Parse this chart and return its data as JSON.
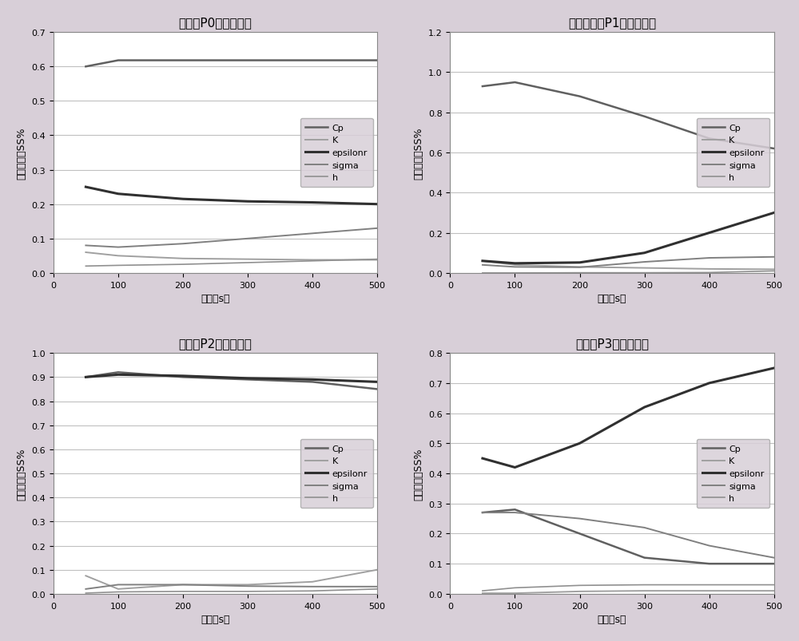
{
  "plots": [
    {
      "title": "中心点P0方差贡献率",
      "xlabel": "时间（s）",
      "ylabel": "方差贡献率SS%",
      "xlim": [
        0,
        500
      ],
      "ylim": [
        0,
        0.7
      ],
      "yticks": [
        0,
        0.1,
        0.2,
        0.3,
        0.4,
        0.5,
        0.6,
        0.7
      ],
      "series": {
        "Cp": {
          "x": [
            50,
            100,
            200,
            300,
            400,
            500
          ],
          "y": [
            0.6,
            0.618,
            0.618,
            0.618,
            0.618,
            0.618
          ],
          "color": "#606060",
          "lw": 1.8
        },
        "K": {
          "x": [
            50,
            100,
            200,
            300,
            400,
            500
          ],
          "y": [
            0.06,
            0.05,
            0.042,
            0.04,
            0.038,
            0.038
          ],
          "color": "#a0a0a0",
          "lw": 1.4
        },
        "epsilonr": {
          "x": [
            50,
            100,
            200,
            300,
            400,
            500
          ],
          "y": [
            0.25,
            0.23,
            0.215,
            0.208,
            0.205,
            0.2
          ],
          "color": "#303030",
          "lw": 2.2
        },
        "sigma": {
          "x": [
            50,
            100,
            200,
            300,
            400,
            500
          ],
          "y": [
            0.08,
            0.075,
            0.085,
            0.1,
            0.115,
            0.13
          ],
          "color": "#808080",
          "lw": 1.4
        },
        "h": {
          "x": [
            50,
            100,
            200,
            300,
            400,
            500
          ],
          "y": [
            0.02,
            0.022,
            0.025,
            0.03,
            0.035,
            0.04
          ],
          "color": "#909090",
          "lw": 1.2
        }
      }
    },
    {
      "title": "近场水冷点P1方差贡献率",
      "xlabel": "时间（s）",
      "ylabel": "方差贡献率SS%",
      "xlim": [
        0,
        500
      ],
      "ylim": [
        0,
        1.2
      ],
      "yticks": [
        0,
        0.2,
        0.4,
        0.6,
        0.8,
        1.0,
        1.2
      ],
      "series": {
        "Cp": {
          "x": [
            50,
            100,
            200,
            300,
            400,
            500
          ],
          "y": [
            0.93,
            0.95,
            0.88,
            0.78,
            0.67,
            0.62
          ],
          "color": "#606060",
          "lw": 1.8
        },
        "K": {
          "x": [
            50,
            100,
            200,
            300,
            400,
            500
          ],
          "y": [
            0.06,
            0.04,
            0.03,
            0.025,
            0.02,
            0.018
          ],
          "color": "#a0a0a0",
          "lw": 1.4
        },
        "epsilonr": {
          "x": [
            50,
            100,
            200,
            300,
            400,
            500
          ],
          "y": [
            0.06,
            0.048,
            0.052,
            0.1,
            0.2,
            0.3
          ],
          "color": "#303030",
          "lw": 2.2
        },
        "sigma": {
          "x": [
            50,
            100,
            200,
            300,
            400,
            500
          ],
          "y": [
            0.04,
            0.03,
            0.028,
            0.055,
            0.075,
            0.08
          ],
          "color": "#808080",
          "lw": 1.4
        },
        "h": {
          "x": [
            50,
            100,
            200,
            300,
            400,
            500
          ],
          "y": [
            0.0,
            0.0,
            0.001,
            0.001,
            0.002,
            0.01
          ],
          "color": "#909090",
          "lw": 1.2
        }
      }
    },
    {
      "title": "近场点P2方差贡献率",
      "xlabel": "时间（s）",
      "ylabel": "方差贡献率SS%",
      "xlim": [
        0,
        500
      ],
      "ylim": [
        0,
        1.0
      ],
      "yticks": [
        0,
        0.1,
        0.2,
        0.3,
        0.4,
        0.5,
        0.6,
        0.7,
        0.8,
        0.9,
        1.0
      ],
      "series": {
        "Cp": {
          "x": [
            50,
            100,
            200,
            300,
            400,
            500
          ],
          "y": [
            0.9,
            0.92,
            0.9,
            0.89,
            0.88,
            0.85
          ],
          "color": "#606060",
          "lw": 1.8
        },
        "K": {
          "x": [
            50,
            100,
            200,
            300,
            400,
            500
          ],
          "y": [
            0.075,
            0.02,
            0.038,
            0.038,
            0.05,
            0.1
          ],
          "color": "#a0a0a0",
          "lw": 1.4
        },
        "epsilonr": {
          "x": [
            50,
            100,
            200,
            300,
            400,
            500
          ],
          "y": [
            0.9,
            0.91,
            0.905,
            0.895,
            0.89,
            0.88
          ],
          "color": "#303030",
          "lw": 2.2
        },
        "sigma": {
          "x": [
            50,
            100,
            200,
            300,
            400,
            500
          ],
          "y": [
            0.02,
            0.038,
            0.038,
            0.032,
            0.03,
            0.03
          ],
          "color": "#808080",
          "lw": 1.4
        },
        "h": {
          "x": [
            50,
            100,
            200,
            300,
            400,
            500
          ],
          "y": [
            0.003,
            0.008,
            0.01,
            0.01,
            0.012,
            0.02
          ],
          "color": "#909090",
          "lw": 1.2
        }
      }
    },
    {
      "title": "远场点P3方差贡献率",
      "xlabel": "时间（s）",
      "ylabel": "方差贡献率SS%",
      "xlim": [
        0,
        500
      ],
      "ylim": [
        0,
        0.8
      ],
      "yticks": [
        0,
        0.1,
        0.2,
        0.3,
        0.4,
        0.5,
        0.6,
        0.7,
        0.8
      ],
      "series": {
        "Cp": {
          "x": [
            50,
            100,
            200,
            300,
            400,
            500
          ],
          "y": [
            0.27,
            0.28,
            0.2,
            0.12,
            0.1,
            0.1
          ],
          "color": "#606060",
          "lw": 1.8
        },
        "K": {
          "x": [
            50,
            100,
            200,
            300,
            400,
            500
          ],
          "y": [
            0.002,
            0.002,
            0.008,
            0.01,
            0.01,
            0.01
          ],
          "color": "#a0a0a0",
          "lw": 1.4
        },
        "epsilonr": {
          "x": [
            50,
            100,
            200,
            300,
            400,
            500
          ],
          "y": [
            0.45,
            0.42,
            0.5,
            0.62,
            0.7,
            0.75
          ],
          "color": "#303030",
          "lw": 2.2
        },
        "sigma": {
          "x": [
            50,
            100,
            200,
            300,
            400,
            500
          ],
          "y": [
            0.27,
            0.27,
            0.25,
            0.22,
            0.16,
            0.12
          ],
          "color": "#808080",
          "lw": 1.4
        },
        "h": {
          "x": [
            50,
            100,
            200,
            300,
            400,
            500
          ],
          "y": [
            0.01,
            0.02,
            0.028,
            0.03,
            0.03,
            0.03
          ],
          "color": "#909090",
          "lw": 1.2
        }
      }
    }
  ],
  "bg_color": "#d8cfd8",
  "plot_bg_color": "#ffffff",
  "legend_order": [
    "Cp",
    "K",
    "epsilonr",
    "sigma",
    "h"
  ],
  "title_fontsize": 11,
  "label_fontsize": 9,
  "tick_fontsize": 8,
  "grid_color": "#c0c0c0"
}
